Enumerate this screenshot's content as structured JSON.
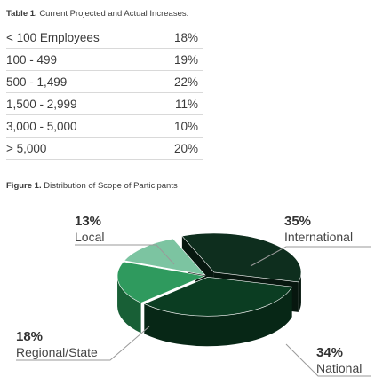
{
  "table": {
    "caption_bold": "Table 1.",
    "caption_text": "Current Projected and Actual Increases.",
    "rows": [
      {
        "label": "< 100 Employees",
        "value": "18%"
      },
      {
        "label": "100 - 499",
        "value": "19%"
      },
      {
        "label": "500 - 1,499",
        "value": "22%"
      },
      {
        "label": "1,500 - 2,999",
        "value": "11%"
      },
      {
        "label": "3,000 - 5,000",
        "value": "10%"
      },
      {
        "label": "> 5,000",
        "value": "20%"
      }
    ]
  },
  "figure": {
    "caption_bold": "Figure 1.",
    "caption_text": "Distribution of Scope of Participants"
  },
  "chart_data": {
    "type": "pie",
    "title": "Distribution of Scope of Participants",
    "categories": [
      "International",
      "National",
      "Regional/State",
      "Local"
    ],
    "values": [
      35,
      34,
      18,
      13
    ],
    "labels": [
      "35%",
      "34%",
      "18%",
      "13%"
    ],
    "colors": [
      "#0e2e1e",
      "#0b3d22",
      "#2f9a5e",
      "#7cc4a1"
    ],
    "side_colors": [
      "#07170f",
      "#072716",
      "#185f36",
      "#3f7a5f"
    ],
    "exploded": "International"
  },
  "colors": {
    "text": "#3a3a3a",
    "rule": "#d9d9d9",
    "leader": "#9a9a9a"
  }
}
